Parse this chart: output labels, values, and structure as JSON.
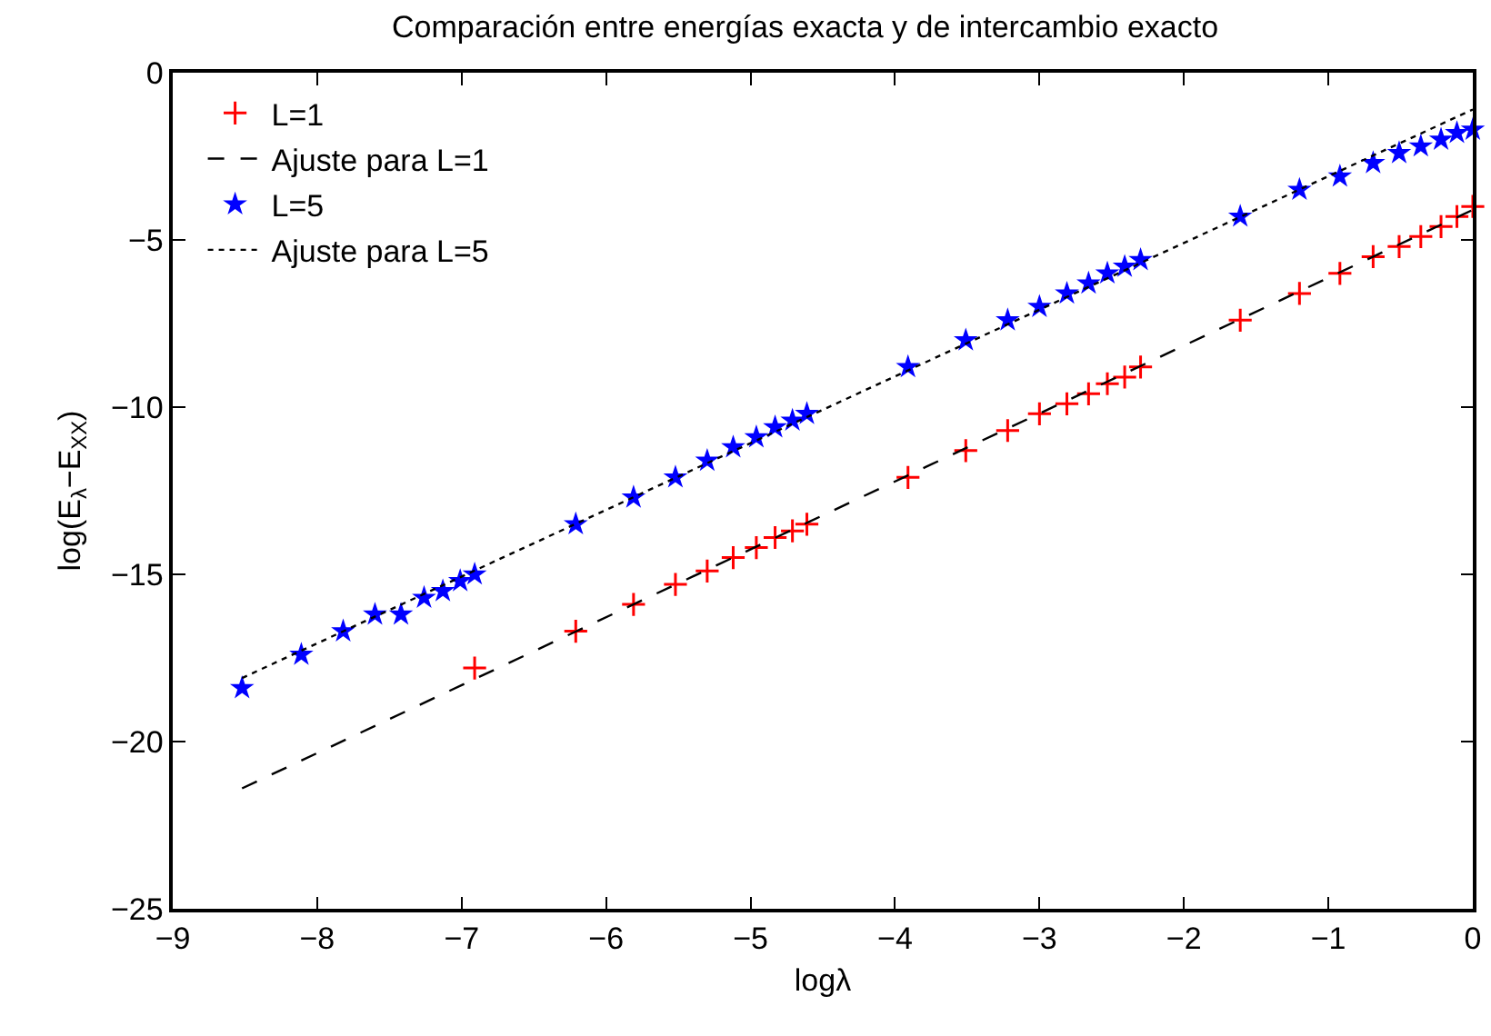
{
  "chart_data": {
    "type": "scatter",
    "title": "Comparación entre energías exacta y de intercambio exacto",
    "xlabel": "logλ",
    "ylabel": "log(E$_{λ}$−E$_{XX}$)",
    "xlim": [
      -9,
      0
    ],
    "xticks": [
      -9,
      -8,
      -7,
      -6,
      -5,
      -4,
      -3,
      -2,
      -1,
      0
    ],
    "ylim": [
      -25,
      0
    ],
    "yticks": [
      -25,
      -20,
      -15,
      -10,
      -5,
      0
    ],
    "grid": false,
    "legend": "top left",
    "series": [
      {
        "name": "L=1",
        "marker": "cross",
        "color": "#ff0000",
        "x": [
          -6.91,
          -6.21,
          -5.81,
          -5.52,
          -5.3,
          -5.12,
          -4.96,
          -4.83,
          -4.71,
          -4.61,
          -3.91,
          -3.51,
          -3.22,
          -3.0,
          -2.81,
          -2.66,
          -2.53,
          -2.41,
          -2.3,
          -1.61,
          -1.2,
          -0.92,
          -0.69,
          -0.51,
          -0.36,
          -0.22,
          -0.11,
          0
        ],
        "values": [
          -17.8,
          -16.7,
          -15.9,
          -15.3,
          -14.9,
          -14.5,
          -14.2,
          -13.9,
          -13.7,
          -13.5,
          -12.1,
          -11.3,
          -10.7,
          -10.2,
          -9.9,
          -9.6,
          -9.3,
          -9.1,
          -8.8,
          -7.4,
          -6.6,
          -6.0,
          -5.5,
          -5.2,
          -4.9,
          -4.6,
          -4.3,
          -4.0
        ]
      },
      {
        "name": "Ajuste para L=1",
        "type": "line",
        "marker": "none",
        "line_style": "dashed",
        "color": "#000000",
        "x": [
          -8.52,
          0
        ],
        "values": [
          -21.4,
          -4.1
        ]
      },
      {
        "name": "L=5",
        "marker": "star",
        "color": "#0000ff",
        "x": [
          -8.52,
          -8.11,
          -7.82,
          -7.6,
          -7.42,
          -7.26,
          -7.13,
          -7.01,
          -6.91,
          -6.21,
          -5.81,
          -5.52,
          -5.3,
          -5.12,
          -4.96,
          -4.83,
          -4.71,
          -4.61,
          -3.91,
          -3.51,
          -3.22,
          -3.0,
          -2.81,
          -2.66,
          -2.53,
          -2.41,
          -2.3,
          -1.61,
          -1.2,
          -0.92,
          -0.69,
          -0.51,
          -0.36,
          -0.22,
          -0.11,
          0
        ],
        "values": [
          -18.4,
          -17.4,
          -16.7,
          -16.2,
          -16.2,
          -15.7,
          -15.5,
          -15.2,
          -15.0,
          -13.5,
          -12.7,
          -12.1,
          -11.6,
          -11.2,
          -10.9,
          -10.6,
          -10.4,
          -10.2,
          -8.8,
          -8.0,
          -7.4,
          -7.0,
          -6.6,
          -6.3,
          -6.0,
          -5.8,
          -5.6,
          -4.3,
          -3.5,
          -3.1,
          -2.7,
          -2.4,
          -2.2,
          -2.0,
          -1.8,
          -1.7
        ]
      },
      {
        "name": "Ajuste para L=5",
        "type": "line",
        "marker": "none",
        "line_style": "dotted",
        "color": "#000000",
        "x": [
          -8.52,
          0
        ],
        "values": [
          -18.1,
          -1.1
        ]
      }
    ]
  }
}
